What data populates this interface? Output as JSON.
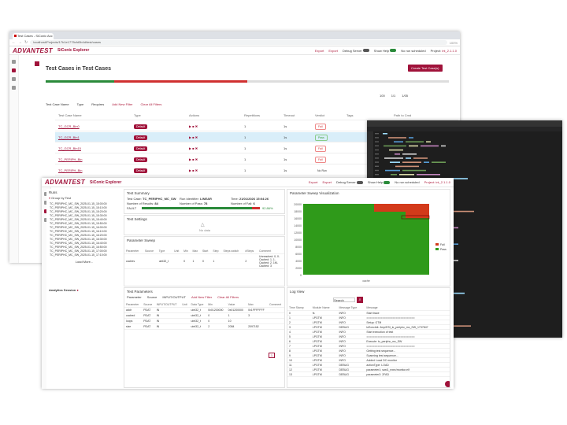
{
  "back": {
    "tab_title": "Test Cases - SiConic Acc",
    "url": "localhost/Projects/17b1e1775cfd3b4d/test/cases",
    "zoom": "100%",
    "logo": "ADVANTEST",
    "product": "SiConic Explorer",
    "export1": "Export",
    "export2": "Export",
    "debug_server": "Debug Server",
    "show_help": "Show Help",
    "not_scheduled": "No run scheduled",
    "project_label": "Project:",
    "project_value": "int_2.1.1.0",
    "page_title": "Test Cases in Test Cases",
    "create_button": "Create Test Case(s)",
    "filter_label": "Test Case Name",
    "type_label": "Type",
    "requires_label": "Requires",
    "add_filter": "Add New Filter",
    "clear_filters": "Clear All Filters",
    "page_size": "100",
    "page_of": "1/1",
    "page_info": "1/05",
    "columns": [
      "Test Case Name",
      "Type",
      "Actions",
      "Repetitions",
      "Timeout",
      "Verdict",
      "Tags",
      "Path to Cmd"
    ],
    "rows": [
      {
        "name": "TC_GCR_Bin0",
        "type": "Default",
        "reps": "1",
        "to": "1s",
        "verdict": "Fail"
      },
      {
        "name": "TC_GCR_Bin1",
        "type": "Default",
        "reps": "1",
        "to": "1s",
        "verdict": "Pass"
      },
      {
        "name": "TC_GCR_Bin15",
        "type": "Default",
        "reps": "1",
        "to": "1s",
        "verdict": "Fail"
      },
      {
        "name": "TC_PERIPH_Bin",
        "type": "Default",
        "reps": "1",
        "to": "1s",
        "verdict": "Fail"
      },
      {
        "name": "TC_PERIPH_Bin",
        "type": "Default",
        "reps": "1",
        "to": "1s",
        "verdict": "No Run"
      }
    ]
  },
  "front": {
    "logo": "ADVANTEST",
    "product": "SiConic Explorer",
    "export1": "Export",
    "export2": "Export",
    "debug_server": "Debug Server",
    "show_help": "Show Help",
    "not_scheduled": "No run scheduled",
    "project": "Project: int_2.1.1.0",
    "runs_title": "Runs",
    "group_by": "Group by Test",
    "tree_items": [
      "TC_PERIPHC_MC_SW_2025-01-15_15:00:00",
      "TC_PERIPHC_MC_SW_2025-01-15_15:10:00",
      "TC_PERIPHC_MC_SW_2025-01-15_15:20:00",
      "TC_PERIPHC_MC_SW_2025-01-15_15:30:00",
      "TC_PERIPHC_MC_SW_2025-01-15_15:40:00",
      "TC_PERIPHC_MC_SW_2025-01-15_15:50:00",
      "TC_PERIPHC_MC_SW_2025-01-15_16:00:00",
      "TC_PERIPHC_MC_SW_2025-01-15_16:10:00",
      "TC_PERIPHC_MC_SW_2025-01-15_16:20:00",
      "TC_PERIPHC_MC_SW_2025-01-15_16:30:00",
      "TC_PERIPHC_MC_SW_2025-01-15_16:40:00",
      "TC_PERIPHC_MC_SW_2025-01-15_16:50:00",
      "TC_PERIPHC_MC_SW_2025-01-15_17:00:00",
      "TC_PERIPHC_MC_SW_2025-01-15_17:10:00"
    ],
    "load_more": "Load More...",
    "analytics": "Analytics Session",
    "summary": {
      "title": "Test Summary",
      "test_case_label": "Test Case:",
      "test_case": "TC_PERIPHC_MC_SW",
      "run_ident_label": "Run Identifier:",
      "run_ident": "LINEAR",
      "time_label": "Time:",
      "time": "21/01/2026 15:04:26",
      "results_label": "Number of Results:",
      "results": "84",
      "pass_label": "Number of Pass:",
      "pass": "78",
      "fail_label": "Number of Fail:",
      "fail": "6",
      "fault_label": "FAULT",
      "progress_pct": "92.86%",
      "progress": 0.93
    },
    "test_settings": "Test Settings",
    "no_data": "No data",
    "sweep": {
      "title": "Parameter Sweep",
      "cols": [
        "Parameter",
        "Source",
        "Type",
        "Unit",
        "Min",
        "Max",
        "Start",
        "Step",
        "Steps switch",
        "#Steps",
        "Comment"
      ],
      "row": [
        "caches",
        "",
        "uint32_t",
        "",
        "0",
        "1",
        "0",
        "1",
        "",
        "2",
        "Unreached: 0, 0-Cached: 1, 1-Cached: 2, 1M-Cached: 3"
      ]
    },
    "viz": {
      "title": "Parameter Sweep Visualization",
      "legend_fail": "Fail",
      "legend_pass": "Pass",
      "xlabel": "cache",
      "y_ticks": [
        "20000",
        "18000",
        "16000",
        "14000",
        "12000",
        "10000",
        "8000",
        "6000",
        "4000",
        "2000",
        "0"
      ]
    },
    "params": {
      "title": "Test Parameters",
      "filter_param": "Parameter",
      "filter_source": "Source",
      "filter_io": "INPUT/OUTPUT",
      "add_filter": "Add New Filter",
      "clear": "Clear All Filters",
      "cols": [
        "Parameter",
        "Source",
        "INPUT/OUTPUT",
        "Unit",
        "Data Type",
        "Min",
        "Value",
        "Max",
        "Comment"
      ],
      "rows": [
        [
          "addr",
          "PDAT",
          "IN",
          "",
          "uint32_t",
          "0x01200000",
          "0x01200000",
          "0x1FFFFFFF",
          ""
        ],
        [
          "cached",
          "PDAT",
          "IN",
          "",
          "uint32_t",
          "0",
          "1",
          "3",
          ""
        ],
        [
          "loops",
          "PDAT",
          "IN",
          "",
          "uint32_t",
          "0",
          "10",
          "",
          ""
        ],
        [
          "size",
          "PDAT",
          "IN",
          "",
          "uint32_t",
          "2",
          "2084",
          "2097152",
          ""
        ]
      ],
      "page": "1"
    },
    "log": {
      "title": "Log View",
      "search": "Search",
      "cols": [
        "Time Stamp",
        "Module Name",
        "Message Type",
        "Message"
      ],
      "rows": [
        [
          "0",
          "fs",
          "INFO",
          "Start trace"
        ],
        [
          "1",
          "LPGTM",
          "INFO",
          "=============================="
        ],
        [
          "2",
          "LPGTM",
          "INFO",
          "Setup: GTM"
        ],
        [
          "3",
          "LPGTM",
          "DEBUG",
          "lcExecInit: /tmp/ESI_tc_periphc_mc_SW_1737847"
        ],
        [
          "4",
          "LPGTM",
          "INFO",
          "Start execution of test"
        ],
        [
          "5",
          "LPGTM",
          "INFO",
          "=============================="
        ],
        [
          "6",
          "LPGTM",
          "INFO",
          "Execute: tc_periphc_mc_SW"
        ],
        [
          "7",
          "LPGTM",
          "INFO",
          "=============================="
        ],
        [
          "8",
          "LPGTM",
          "INFO",
          "Getting test sequence..."
        ],
        [
          "9",
          "LPGTM",
          "INFO",
          "Scanning test sequence..."
        ],
        [
          "10",
          "LPGTM",
          "INFO",
          "Added: Load DC monitor"
        ],
        [
          "11",
          "LPGTM",
          "DEBUG",
          "actionType: LOAD"
        ],
        [
          "12",
          "LPGTM",
          "DEBUG",
          "parameter1: swd1_exec/monitor.elf"
        ],
        [
          "13",
          "LPGTM",
          "DEBUG",
          "parameter2: 2FAD"
        ]
      ]
    }
  }
}
